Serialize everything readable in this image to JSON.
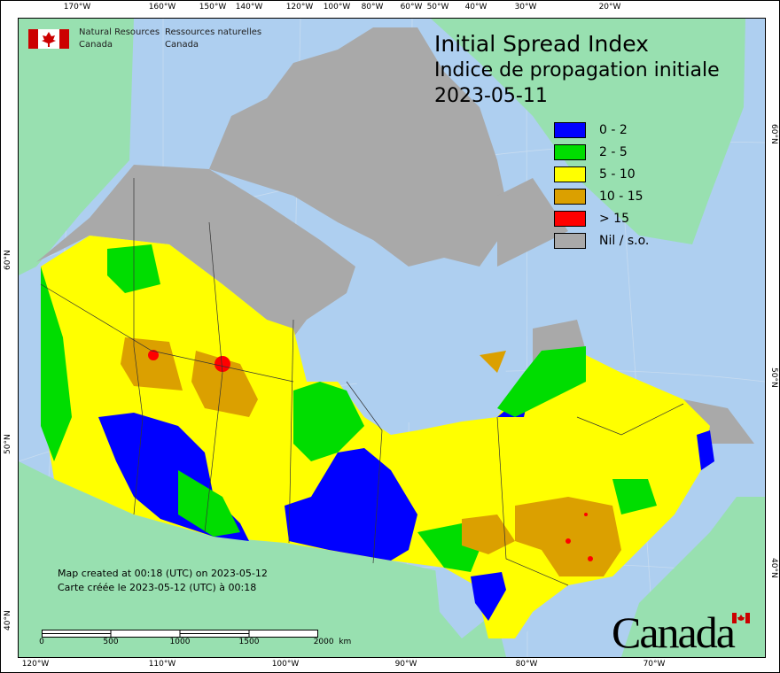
{
  "header": {
    "agency_en_line1": "Natural Resources",
    "agency_en_line2": "Canada",
    "agency_fr_line1": "Ressources naturelles",
    "agency_fr_line2": "Canada",
    "title_en": "Initial Spread Index",
    "title_fr": "Indice de propagation initiale",
    "date": "2023-05-11"
  },
  "legend": [
    {
      "label": "0 - 2",
      "color": "#0000ff"
    },
    {
      "label": "2 - 5",
      "color": "#00dd00"
    },
    {
      "label": "5 - 10",
      "color": "#ffff00"
    },
    {
      "label": "10 - 15",
      "color": "#dba000"
    },
    {
      "label": "> 15",
      "color": "#ff0000"
    },
    {
      "label": "Nil / s.o.",
      "color": "#a9a9a9"
    }
  ],
  "footer": {
    "created_en": "Map created at 00:18 (UTC) on 2023-05-12",
    "created_fr": "Carte créée le 2023-05-12 (UTC) à 00:18",
    "scale_labels": [
      "0",
      "500",
      "1000",
      "1500",
      "2000  km"
    ],
    "wordmark": "Canada"
  },
  "graticule": {
    "top": [
      "170°W",
      "160°W",
      "150°W",
      "140°W",
      "120°W",
      "100°W",
      "80°W",
      "60°W",
      "50°W",
      "40°W",
      "30°W",
      "20°W"
    ],
    "bottom": [
      "120°W",
      "110°W",
      "100°W",
      "90°W",
      "80°W",
      "70°W"
    ],
    "left": [
      "60°N",
      "50°N",
      "40°N"
    ],
    "right": [
      "60°N",
      "50°N",
      "40°N"
    ]
  },
  "colors": {
    "water": "#aecff0",
    "foreign_land": "#98e0b0",
    "nil": "#a9a9a9"
  }
}
